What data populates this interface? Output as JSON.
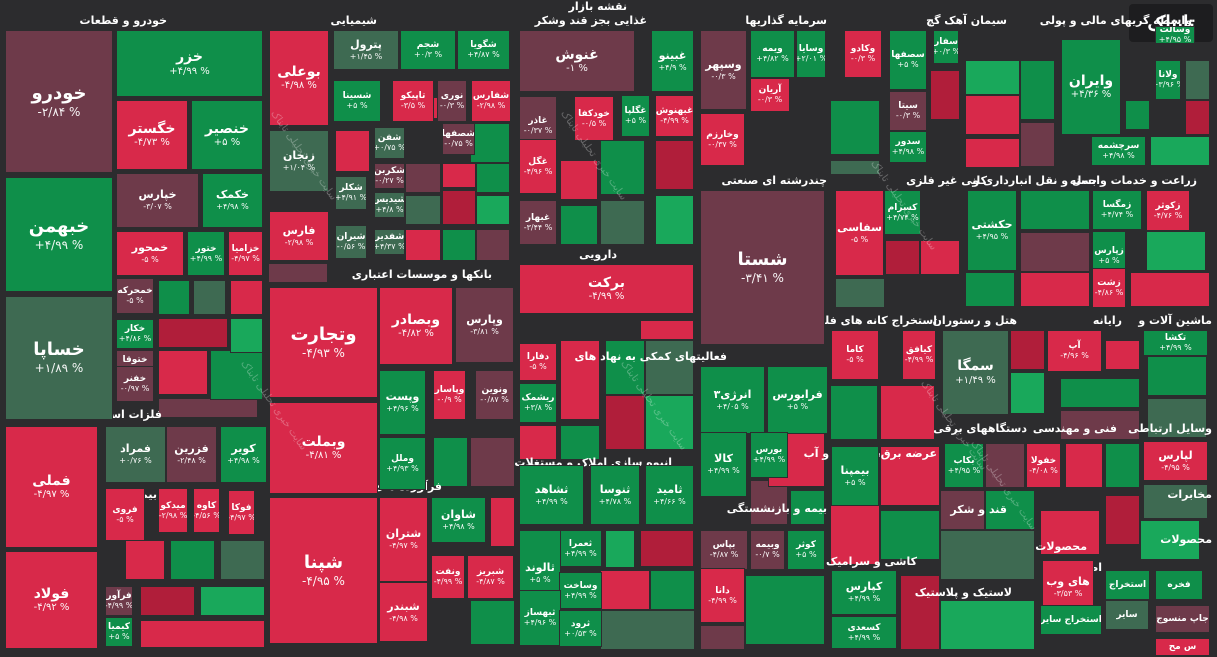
{
  "colors": {
    "background": "#2c2c2e",
    "strong_up": "#19a85b",
    "up": "#0f8f4a",
    "flat_up": "#3e6a52",
    "flat_down": "#6e3a4a",
    "down": "#b01e3a",
    "strong_down": "#d8294a"
  },
  "brand": {
    "logo_text": "تابناک"
  },
  "watermark": {
    "text": "سایت خبری تحلیلی تابناک"
  },
  "sectors": [
    {
      "title": "خودرو و قطعات"
    },
    {
      "title": "شیمیایی"
    },
    {
      "title": "نقشه بازار"
    },
    {
      "title": "غذایی بجز قند وشکر"
    },
    {
      "title": "سرمایه گذاریها"
    },
    {
      "title": "سیمان آهک گچ"
    },
    {
      "title": "واسطه گریهای مالی و پولی"
    },
    {
      "title": "فلزات اساسی"
    },
    {
      "title": "بانکها و موسسات اعتباری"
    },
    {
      "title": "دارویی"
    },
    {
      "title": "چندرشته ای صنعتی"
    },
    {
      "title": "کانی غیر فلزی"
    },
    {
      "title": "حمل و نقل انبارداری و"
    },
    {
      "title": "زراعت و خدمات وابسته"
    },
    {
      "title": "فرآورده های نفتی"
    },
    {
      "title": "فعالیتهای کمکی به نهاد های"
    },
    {
      "title": "استخراج کانه های فلزی"
    },
    {
      "title": "هتل و رستوران"
    },
    {
      "title": "رایانه"
    },
    {
      "title": "ماشین آلات و"
    },
    {
      "title": "انبوه سازی املاک و مستغلات"
    },
    {
      "title": "عرضه برق،گاز،بخار و آب"
    },
    {
      "title": "دستگاههای برقی"
    },
    {
      "title": "فنی و مهندسی"
    },
    {
      "title": "وسایل ارتباطی"
    },
    {
      "title": "بیمه و بازنشستگی"
    },
    {
      "title": "قند و شکر"
    },
    {
      "title": "محصولات"
    },
    {
      "title": "بیمانکاری"
    },
    {
      "title": "مخابرات"
    },
    {
      "title": "کاشی و سرامیک"
    },
    {
      "title": "اطلاعات و"
    },
    {
      "title": "لاستیک و پلاستیک"
    },
    {
      "title": "محصولات"
    },
    {
      "title": "محصولات"
    }
  ],
  "tiles": [
    {
      "name": "خودرو",
      "change": "-۲/۸۴ %",
      "tone": "flat_down"
    },
    {
      "name": "خبهمن",
      "change": "+۴/۹۹ %",
      "tone": "up"
    },
    {
      "name": "خساپا",
      "change": "+۱/۸۹ %",
      "tone": "flat_up"
    },
    {
      "name": "خزر",
      "change": "+۴/۹۹ %",
      "tone": "up"
    },
    {
      "name": "خگستر",
      "change": "-۴/۷۳ %",
      "tone": "strong_down"
    },
    {
      "name": "خنصیر",
      "change": "+۵ %",
      "tone": "up"
    },
    {
      "name": "خپارس",
      "change": "-۳/۰۷ %",
      "tone": "flat_down"
    },
    {
      "name": "خکمک",
      "change": "+۴/۹۸ %",
      "tone": "up"
    },
    {
      "name": "خمحور",
      "change": "-۵ %",
      "tone": "strong_down"
    },
    {
      "name": "ختور",
      "change": "+۴/۹۹ %",
      "tone": "up"
    },
    {
      "name": "خزامیا",
      "change": "-۴/۹۷ %",
      "tone": "strong_down"
    },
    {
      "name": "خمحرکه",
      "change": "-۵ %",
      "tone": "flat_down"
    },
    {
      "name": "خکار",
      "change": "+۴/۸۶ %",
      "tone": "up"
    },
    {
      "name": "ختوقا",
      "change": "-۰/۹۷ %",
      "tone": "flat_down"
    },
    {
      "name": "خفنر",
      "change": "-۰/۹۷ %",
      "tone": "flat_down"
    },
    {
      "name": "بوعلی",
      "change": "-۴/۹۸ %",
      "tone": "strong_down"
    },
    {
      "name": "پترول",
      "change": "+۱/۴۵ %",
      "tone": "flat_up"
    },
    {
      "name": "شجم",
      "change": "+۰/۳ %",
      "tone": "up"
    },
    {
      "name": "شگویا",
      "change": "+۴/۸۷ %",
      "tone": "up"
    },
    {
      "name": "شسینا",
      "change": "+۵ %",
      "tone": "up"
    },
    {
      "name": "تاپیکو",
      "change": "-۳/۵ %",
      "tone": "strong_down"
    },
    {
      "name": "نوری",
      "change": "-۰/۳ %",
      "tone": "flat_down"
    },
    {
      "name": "شفارس",
      "change": "-۲/۹۸ %",
      "tone": "strong_down"
    },
    {
      "name": "شفن",
      "change": "+۰/۷۵ %",
      "tone": "flat_up"
    },
    {
      "name": "شصفها",
      "change": "-۰/۷۵ %",
      "tone": "flat_down"
    },
    {
      "name": "زنجان",
      "change": "+۱/۰۴ %",
      "tone": "flat_up"
    },
    {
      "name": "شکربن",
      "change": "-۰/۲۷ %",
      "tone": "flat_down"
    },
    {
      "name": "شکلر",
      "change": "+۴/۹۱ %",
      "tone": "flat_up"
    },
    {
      "name": "شیدیس",
      "change": "+۴/۸ %",
      "tone": "flat_up"
    },
    {
      "name": "شیران",
      "change": "-۰/۵۶ %",
      "tone": "flat_up"
    },
    {
      "name": "شفدیر",
      "change": "+۴/۳۷ %",
      "tone": "flat_up"
    },
    {
      "name": "فارس",
      "change": "-۲/۹۸ %",
      "tone": "strong_down"
    },
    {
      "name": "غنوش",
      "change": "-۱ %",
      "tone": "flat_down"
    },
    {
      "name": "غبینو",
      "change": "+۴/۹ %",
      "tone": "up"
    },
    {
      "name": "غاذر",
      "change": "-۰/۳۷ %",
      "tone": "flat_down"
    },
    {
      "name": "خودکفا",
      "change": "-۰/۵ %",
      "tone": "strong_down"
    },
    {
      "name": "غگلپا",
      "change": "+۵ %",
      "tone": "up"
    },
    {
      "name": "غبهنوش",
      "change": "-۴/۹۹ %",
      "tone": "strong_down"
    },
    {
      "name": "غگل",
      "change": "-۴/۹۶ %",
      "tone": "strong_down"
    },
    {
      "name": "غبهار",
      "change": "-۳/۴۴ %",
      "tone": "flat_down"
    },
    {
      "name": "وسپهر",
      "change": "-۰/۳ %",
      "tone": "flat_down"
    },
    {
      "name": "ویمه",
      "change": "+۴/۸۲ %",
      "tone": "up"
    },
    {
      "name": "وسایا",
      "change": "+۲/۰۱ %",
      "tone": "up"
    },
    {
      "name": "وکادو",
      "change": "-۰/۳ %",
      "tone": "strong_down"
    },
    {
      "name": "آریان",
      "change": "-۰/۳ %",
      "tone": "strong_down"
    },
    {
      "name": "وخارزم",
      "change": "-۰/۳۷ %",
      "tone": "strong_down"
    },
    {
      "name": "سصفها",
      "change": "+۵ %",
      "tone": "up"
    },
    {
      "name": "سفار",
      "change": "+۰/۳ %",
      "tone": "up"
    },
    {
      "name": "سیتا",
      "change": "-۰/۳ %",
      "tone": "flat_down"
    },
    {
      "name": "سدور",
      "change": "+۴/۹۸ %",
      "tone": "up"
    },
    {
      "name": "وایران",
      "change": "+۴/۳۶ %",
      "tone": "up"
    },
    {
      "name": "ولانا",
      "change": "+۳/۹۶ %",
      "tone": "up"
    },
    {
      "name": "وسالت",
      "change": "+۴/۹۵ %",
      "tone": "up"
    },
    {
      "name": "سرچشمه",
      "change": "+۴/۹۸ %",
      "tone": "up"
    },
    {
      "name": "فملی",
      "change": "-۴/۹۷ %",
      "tone": "strong_down"
    },
    {
      "name": "فولاد",
      "change": "-۴/۹۲ %",
      "tone": "strong_down"
    },
    {
      "name": "فمراد",
      "change": "+۰/۷۶ %",
      "tone": "flat_up"
    },
    {
      "name": "فزرین",
      "change": "-۲/۴۸ %",
      "tone": "flat_down"
    },
    {
      "name": "کویر",
      "change": "+۴/۹۸ %",
      "tone": "up"
    },
    {
      "name": "فروی",
      "change": "-۵ %",
      "tone": "strong_down"
    },
    {
      "name": "میدکو",
      "change": "-۲/۹۸ %",
      "tone": "strong_down"
    },
    {
      "name": "کاوه",
      "change": "-۴/۵۶ %",
      "tone": "strong_down"
    },
    {
      "name": "فوکا",
      "change": "-۴/۹۷ %",
      "tone": "strong_down"
    },
    {
      "name": "فرآور",
      "change": "-۴/۹۹ %",
      "tone": "flat_down"
    },
    {
      "name": "کیمیا",
      "change": "+۵ %",
      "tone": "up"
    },
    {
      "name": "وتجارت",
      "change": "-۴/۹۳ %",
      "tone": "strong_down"
    },
    {
      "name": "وبصادر",
      "change": "-۴/۸۲ %",
      "tone": "strong_down"
    },
    {
      "name": "وپارس",
      "change": "-۳/۸۱ %",
      "tone": "flat_down"
    },
    {
      "name": "وبملت",
      "change": "-۴/۸۱ %",
      "tone": "strong_down"
    },
    {
      "name": "وپست",
      "change": "+۴/۹۶ %",
      "tone": "up"
    },
    {
      "name": "وپاسار",
      "change": "-۰/۹ %",
      "tone": "strong_down"
    },
    {
      "name": "ونوین",
      "change": "-۰/۸۷ %",
      "tone": "flat_down"
    },
    {
      "name": "وملل",
      "change": "+۴/۹۳ %",
      "tone": "up"
    },
    {
      "name": "برکت",
      "change": "-۴/۹۹ %",
      "tone": "strong_down"
    },
    {
      "name": "دفارا",
      "change": "-۵ %",
      "tone": "strong_down"
    },
    {
      "name": "ریشمک",
      "change": "+۳/۸ %",
      "tone": "up"
    },
    {
      "name": "شستا",
      "change": "-۳/۴۱ %",
      "tone": "flat_down"
    },
    {
      "name": "سفاسی",
      "change": "-۵ %",
      "tone": "strong_down"
    },
    {
      "name": "کسرام",
      "change": "+۴/۷۴ %",
      "tone": "up"
    },
    {
      "name": "حکشتی",
      "change": "+۴/۹۵ %",
      "tone": "up"
    },
    {
      "name": "زمگسا",
      "change": "+۴/۷۴ %",
      "tone": "up"
    },
    {
      "name": "زکوثر",
      "change": "-۴/۷۶ %",
      "tone": "strong_down"
    },
    {
      "name": "زپارس",
      "change": "+۵ %",
      "tone": "up"
    },
    {
      "name": "زشت",
      "change": "-۴/۸۶ %",
      "tone": "strong_down"
    },
    {
      "name": "شپنا",
      "change": "-۴/۹۵ %",
      "tone": "strong_down"
    },
    {
      "name": "شتران",
      "change": "-۴/۹۷ %",
      "tone": "strong_down"
    },
    {
      "name": "شاوان",
      "change": "+۴/۹۸ %",
      "tone": "up"
    },
    {
      "name": "ونفت",
      "change": "-۴/۹۹ %",
      "tone": "strong_down"
    },
    {
      "name": "شبریز",
      "change": "-۴/۸۷ %",
      "tone": "strong_down"
    },
    {
      "name": "شبندر",
      "change": "-۴/۹۸ %",
      "tone": "strong_down"
    },
    {
      "name": "انرژی۳",
      "change": "+۴/۰۵ %",
      "tone": "up"
    },
    {
      "name": "فرابورس",
      "change": "+۵ %",
      "tone": "up"
    },
    {
      "name": "کالا",
      "change": "+۴/۹۹ %",
      "tone": "up"
    },
    {
      "name": "بورس",
      "change": "+۴/۹۹ %",
      "tone": "up"
    },
    {
      "name": "کاما",
      "change": "-۵ %",
      "tone": "strong_down"
    },
    {
      "name": "کیافق",
      "change": "-۴/۹۹ %",
      "tone": "strong_down"
    },
    {
      "name": "سمگا",
      "change": "+۱/۴۹ %",
      "tone": "flat_up"
    },
    {
      "name": "آپ",
      "change": "-۴/۹۶ %",
      "tone": "strong_down"
    },
    {
      "name": "تکشا",
      "change": "+۴/۹۹ %",
      "tone": "up"
    },
    {
      "name": "ثشاهد",
      "change": "+۴/۹۹ %",
      "tone": "up"
    },
    {
      "name": "ثنوسا",
      "change": "+۴/۷۸ %",
      "tone": "up"
    },
    {
      "name": "ثامید",
      "change": "+۴/۶۶ %",
      "tone": "up"
    },
    {
      "name": "بیمپنا",
      "change": "+۵ %",
      "tone": "up"
    },
    {
      "name": "بکاب",
      "change": "+۴/۹۵ %",
      "tone": "up"
    },
    {
      "name": "خفولا",
      "change": "-۴/۰۸ %",
      "tone": "strong_down"
    },
    {
      "name": "لپارس",
      "change": "-۴/۹۵ %",
      "tone": "strong_down"
    },
    {
      "name": "بپاس",
      "change": "-۴/۸۷ %",
      "tone": "flat_down"
    },
    {
      "name": "وبیمه",
      "change": "-۰/۷ %",
      "tone": "flat_down"
    },
    {
      "name": "کوثر",
      "change": "+۵ %",
      "tone": "up"
    },
    {
      "name": "ثعمرا",
      "change": "+۴/۹۹ %",
      "tone": "up"
    },
    {
      "name": "ثالوند",
      "change": "+۵ %",
      "tone": "up"
    },
    {
      "name": "وساخت",
      "change": "+۴/۹۹ %",
      "tone": "up"
    },
    {
      "name": "ثبهساز",
      "change": "+۴/۹۶ %",
      "tone": "up"
    },
    {
      "name": "ثرود",
      "change": "+۰/۵۳ %",
      "tone": "up"
    },
    {
      "name": "دانا",
      "change": "-۴/۹۹ %",
      "tone": "strong_down"
    },
    {
      "name": "کپارس",
      "change": "+۴/۹۹ %",
      "tone": "up"
    },
    {
      "name": "کسعدی",
      "change": "+۴/۹۹ %",
      "tone": "up"
    },
    {
      "name": "های وب",
      "change": "-۳/۵۳ %",
      "tone": "strong_down"
    },
    {
      "name": "فخره",
      "change": "",
      "tone": "up"
    },
    {
      "name": "استخراج",
      "change": "",
      "tone": "up"
    },
    {
      "name": "استخراج سایر",
      "change": "",
      "tone": "up"
    },
    {
      "name": "سایر",
      "change": "",
      "tone": "flat_up"
    },
    {
      "name": "جاپ منسوج",
      "change": "",
      "tone": "flat_down"
    },
    {
      "name": "س مح",
      "change": "",
      "tone": "strong_down"
    }
  ]
}
